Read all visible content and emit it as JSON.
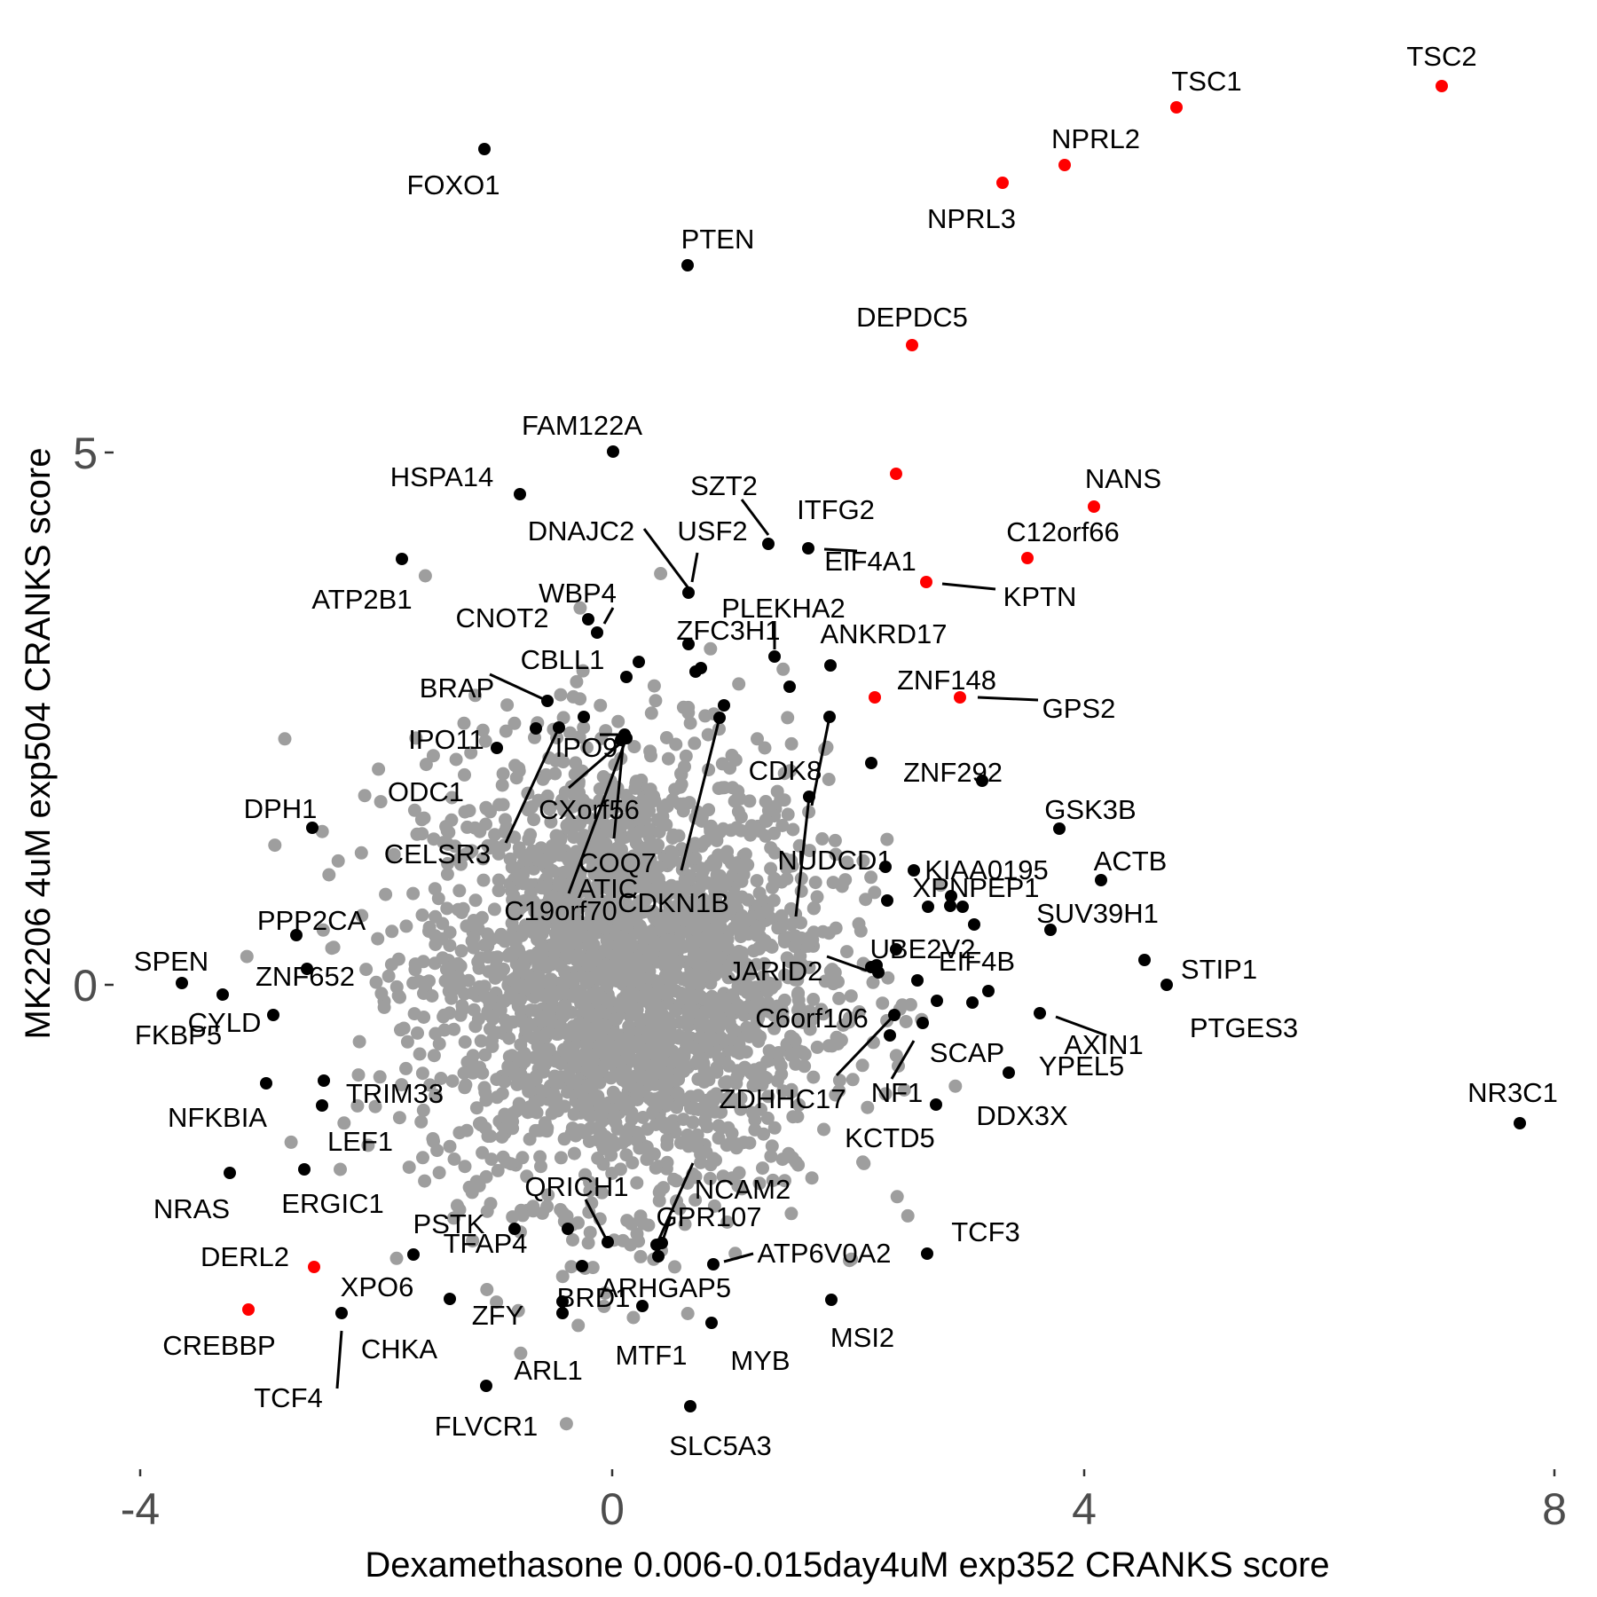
{
  "chart_data": {
    "type": "scatter",
    "xlabel": "Dexamethasone 0.006-0.015day4uM exp352 CRANKS score",
    "ylabel": "MK2206 4uM exp504 CRANKS score",
    "xlim": [
      -4.2,
      8.0
    ],
    "ylim": [
      -4.55,
      9.15
    ],
    "x_ticks": [
      -4,
      0,
      4,
      8
    ],
    "x_tick_labels": [
      "-4",
      "0",
      "4",
      "8"
    ],
    "y_ticks": [
      0,
      5
    ],
    "y_tick_labels": [
      "0",
      "5"
    ],
    "grid": false,
    "legend": "none",
    "colors": {
      "background_points": "#9e9e9e",
      "labeled_points": "#000000",
      "highlight_points": "#ff0000"
    },
    "background_cloud": {
      "description_count": 2600,
      "center": [
        0.1,
        0.1
      ],
      "sd": [
        0.85,
        1.05
      ]
    },
    "points": [
      {
        "label": "TSC2",
        "x": 7.12,
        "y": 8.5,
        "hl": true
      },
      {
        "label": "TSC1",
        "x": 4.87,
        "y": 8.3,
        "hl": true
      },
      {
        "label": "NPRL2",
        "x": 3.87,
        "y": 7.75,
        "hl": true
      },
      {
        "label": "NPRL3",
        "x": 3.35,
        "y": 7.6,
        "hl": true
      },
      {
        "label": "FOXO1",
        "x": -1.07,
        "y": 7.9,
        "hl": false
      },
      {
        "label": "PTEN",
        "x": 0.67,
        "y": 6.8,
        "hl": false
      },
      {
        "label": "DEPDC5",
        "x": 2.57,
        "y": 6.05,
        "hl": true
      },
      {
        "label": "FAM122A",
        "x": 0.03,
        "y": 5.0,
        "hl": false
      },
      {
        "label": "HSPA14",
        "x": -0.77,
        "y": 4.6,
        "hl": false
      },
      {
        "label": "ITFG2",
        "x": 2.43,
        "y": 4.8,
        "hl": true
      },
      {
        "label": "NANS",
        "x": 4.12,
        "y": 4.5,
        "hl": true
      },
      {
        "label": "SZT2",
        "x": 1.35,
        "y": 4.15,
        "hl": false
      },
      {
        "label": "EIF4A1",
        "x": 1.68,
        "y": 4.1,
        "hl": false
      },
      {
        "label": "C12orf66",
        "x": 3.55,
        "y": 4.0,
        "hl": true
      },
      {
        "label": "ATP2B1",
        "x": -1.77,
        "y": 4.0,
        "hl": false
      },
      {
        "label": "DNAJC2",
        "x": 0.68,
        "y": 3.7,
        "hl": false
      },
      {
        "label": "USF2",
        "x": 0.68,
        "y": 3.7,
        "hl": false
      },
      {
        "label": "KPTN",
        "x": 2.68,
        "y": 3.77,
        "hl": true
      },
      {
        "label": "WBP4",
        "x": -0.12,
        "y": 3.3,
        "hl": false
      },
      {
        "label": "PLEKHA2",
        "x": 1.4,
        "y": 3.05,
        "hl": false
      },
      {
        "label": "ZFC3H1",
        "x": 0.67,
        "y": 3.2,
        "hl": false
      },
      {
        "label": "CNOT2",
        "x": -0.18,
        "y": 3.4,
        "hl": false
      },
      {
        "label": "ANKRD17",
        "x": 1.88,
        "y": 3.0,
        "hl": false
      },
      {
        "label": "CBLL1",
        "x": 0.14,
        "y": 2.9,
        "hl": false
      },
      {
        "label": "BRAP",
        "x": -0.53,
        "y": 2.6,
        "hl": false
      },
      {
        "label": "ZNF148",
        "x": 2.25,
        "y": 2.68,
        "hl": true
      },
      {
        "label": "GPS2",
        "x": 2.98,
        "y": 2.68,
        "hl": true
      },
      {
        "label": "IPO11",
        "x": -0.96,
        "y": 2.2,
        "hl": false
      },
      {
        "label": "IPO9",
        "x": 0.72,
        "y": 2.55,
        "hl": false
      },
      {
        "label": "CDK8",
        "x": 1.87,
        "y": 2.5,
        "hl": false
      },
      {
        "label": "ZNF292",
        "x": 2.23,
        "y": 2.08,
        "hl": false
      },
      {
        "label": "ODC1",
        "x": -0.55,
        "y": 2.1,
        "hl": false
      },
      {
        "label": "CXorf56",
        "x": 0.12,
        "y": 2.3,
        "hl": false
      },
      {
        "label": "XPNPEP1",
        "x": 3.15,
        "y": 1.9,
        "hl": false
      },
      {
        "label": "CDKN1B",
        "x": 1.67,
        "y": 1.8,
        "hl": false
      },
      {
        "label": "DPH1",
        "x": -2.53,
        "y": 1.45,
        "hl": false
      },
      {
        "label": "CELSR3",
        "x": -0.51,
        "y": 2.25,
        "hl": false
      },
      {
        "label": "COQ7",
        "x": 0.12,
        "y": 2.3,
        "hl": false
      },
      {
        "label": "GSK3B",
        "x": 3.8,
        "y": 1.45,
        "hl": false
      },
      {
        "label": "NUDCD1",
        "x": 2.34,
        "y": 1.1,
        "hl": false
      },
      {
        "label": "KIAA0195",
        "x": 2.58,
        "y": 1.07,
        "hl": false
      },
      {
        "label": "ACTB",
        "x": 4.18,
        "y": 0.95,
        "hl": false
      },
      {
        "label": "C19orf70",
        "x": 0.12,
        "y": 2.3,
        "hl": false
      },
      {
        "label": "ATIC",
        "x": 0.9,
        "y": 2.45,
        "hl": false
      },
      {
        "label": "PPP2CA",
        "x": -2.67,
        "y": 0.45,
        "hl": false
      },
      {
        "label": "SUV39H1",
        "x": 3.78,
        "y": 0.5,
        "hl": false
      },
      {
        "label": "UBE2V2",
        "x": 2.37,
        "y": 0.3,
        "hl": false
      },
      {
        "label": "SPEN",
        "x": -3.65,
        "y": 0.0,
        "hl": false
      },
      {
        "label": "STIP1",
        "x": 4.57,
        "y": 0.2,
        "hl": false
      },
      {
        "label": "JARID2",
        "x": 2.23,
        "y": 0.2,
        "hl": false
      },
      {
        "label": "EIF4B",
        "x": 3.23,
        "y": -0.06,
        "hl": false
      },
      {
        "label": "FKBP5",
        "x": -3.28,
        "y": -0.1,
        "hl": false
      },
      {
        "label": "ZNF652",
        "x": -2.53,
        "y": 0.15,
        "hl": false
      },
      {
        "label": "PTGES3",
        "x": 4.75,
        "y": 0.0,
        "hl": false
      },
      {
        "label": "AXIN1",
        "x": 3.67,
        "y": -0.27,
        "hl": false
      },
      {
        "label": "C6orf106",
        "x": 2.4,
        "y": -0.3,
        "hl": false
      },
      {
        "label": "CYLD",
        "x": -2.9,
        "y": -0.3,
        "hl": false
      },
      {
        "label": "ZDHHC17",
        "x": 2.4,
        "y": -0.3,
        "hl": false
      },
      {
        "label": "SCAP",
        "x": 2.68,
        "y": -0.38,
        "hl": false
      },
      {
        "label": "YPEL5",
        "x": 3.43,
        "y": -0.88,
        "hl": false
      },
      {
        "label": "NFKBIA",
        "x": -2.93,
        "y": -0.95,
        "hl": false
      },
      {
        "label": "TRIM33",
        "x": -2.43,
        "y": -0.93,
        "hl": false
      },
      {
        "label": "NF1",
        "x": 2.68,
        "y": -0.38,
        "hl": false
      },
      {
        "label": "NR3C1",
        "x": 7.74,
        "y": -1.34,
        "hl": false
      },
      {
        "label": "LEF1",
        "x": -2.45,
        "y": -1.16,
        "hl": false
      },
      {
        "label": "DDX3X",
        "x": 2.76,
        "y": -1.15,
        "hl": false
      },
      {
        "label": "KCTD5",
        "x": 2.44,
        "y": -0.48,
        "hl": false
      },
      {
        "label": "QRICH1",
        "x": -0.04,
        "y": -2.42,
        "hl": false
      },
      {
        "label": "NCAM2",
        "x": 0.31,
        "y": -2.47,
        "hl": false
      },
      {
        "label": "NRAS",
        "x": -3.23,
        "y": -1.78,
        "hl": false
      },
      {
        "label": "ERGIC1",
        "x": -2.6,
        "y": -1.75,
        "hl": false
      },
      {
        "label": "PSTK",
        "x": -1.67,
        "y": -2.55,
        "hl": false
      },
      {
        "label": "GPR107",
        "x": 0.45,
        "y": -2.43,
        "hl": false
      },
      {
        "label": "TCF3",
        "x": 2.7,
        "y": -2.55,
        "hl": false
      },
      {
        "label": "DERL2",
        "x": -2.52,
        "y": -2.67,
        "hl": true
      },
      {
        "label": "TFAP4",
        "x": -0.83,
        "y": -2.34,
        "hl": false
      },
      {
        "label": "ATP6V0A2",
        "x": 0.9,
        "y": -2.67,
        "hl": false
      },
      {
        "label": "XPO6",
        "x": -2.28,
        "y": -3.07,
        "hl": false
      },
      {
        "label": "ARHGAP5",
        "x": -0.25,
        "y": -2.66,
        "hl": false
      },
      {
        "label": "ZFY",
        "x": -1.37,
        "y": -2.95,
        "hl": false
      },
      {
        "label": "BRD1",
        "x": 0.28,
        "y": -3.0,
        "hl": false
      },
      {
        "label": "CREBBP",
        "x": -3.08,
        "y": -3.05,
        "hl": true
      },
      {
        "label": "MSI2",
        "x": 1.87,
        "y": -2.95,
        "hl": false
      },
      {
        "label": "CHKA",
        "x": -2.28,
        "y": -3.07,
        "hl": false
      },
      {
        "label": "MTF1",
        "x": -0.42,
        "y": -3.07,
        "hl": false
      },
      {
        "label": "MYB",
        "x": 0.85,
        "y": -3.17,
        "hl": false
      },
      {
        "label": "TCF4",
        "x": -2.28,
        "y": -3.07,
        "hl": false
      },
      {
        "label": "ARL1",
        "x": -1.05,
        "y": -3.75,
        "hl": false
      },
      {
        "label": "FLVCR1",
        "x": -1.05,
        "y": -3.75,
        "hl": false
      },
      {
        "label": "SLC5A3",
        "x": 0.67,
        "y": -3.94,
        "hl": false
      }
    ]
  }
}
